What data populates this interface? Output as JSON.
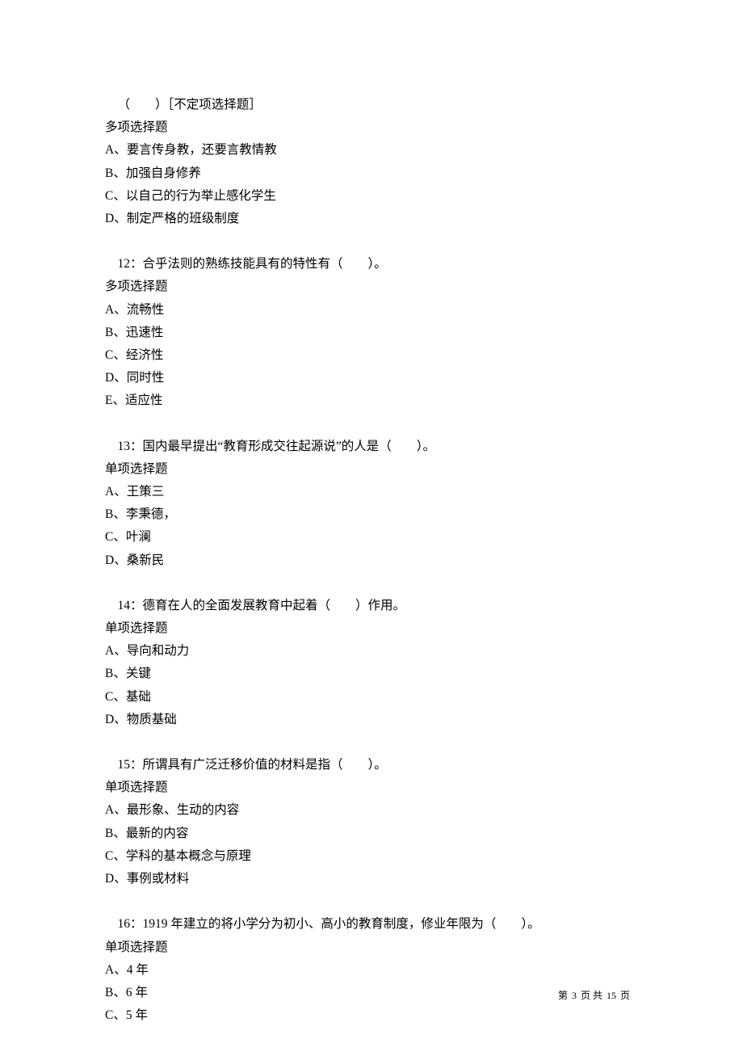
{
  "q11": {
    "lead": "（　　）［不定项选择题］",
    "type": "多项选择题",
    "options": {
      "A": "A、要言传身教，还要言教情教",
      "B": "B、加强自身修养",
      "C": "C、以自己的行为举止感化学生",
      "D": "D、制定严格的班级制度"
    }
  },
  "q12": {
    "lead": "12：合乎法则的熟练技能具有的特性有（　　）。",
    "type": "多项选择题",
    "options": {
      "A": "A、流畅性",
      "B": "B、迅速性",
      "C": "C、经济性",
      "D": "D、同时性",
      "E": "E、适应性"
    }
  },
  "q13": {
    "lead": "13：国内最早提出“教育形成交往起源说”的人是（　　）。",
    "type": "单项选择题",
    "options": {
      "A": "A、王策三",
      "B": "B、李秉德，",
      "C": "C、叶澜",
      "D": "D、桑新民"
    }
  },
  "q14": {
    "lead": "14：德育在人的全面发展教育中起着（　　）作用。",
    "type": "单项选择题",
    "options": {
      "A": "A、导向和动力",
      "B": "B、关键",
      "C": "C、基础",
      "D": "D、物质基础"
    }
  },
  "q15": {
    "lead": "15：所谓具有广泛迁移价值的材料是指（　　）。",
    "type": "单项选择题",
    "options": {
      "A": "A、最形象、生动的内容",
      "B": "B、最新的内容",
      "C": "C、学科的基本概念与原理",
      "D": "D、事例或材料"
    }
  },
  "q16": {
    "lead": "16：1919 年建立的将小学分为初小、高小的教育制度，修业年限为（　　）。",
    "type": "单项选择题",
    "options": {
      "A": "A、4 年",
      "B": "B、6 年",
      "C": "C、5 年"
    }
  },
  "footer": {
    "prefix": "第",
    "page_current": "3",
    "mid": "页 共",
    "page_total": "15",
    "suffix": "页"
  }
}
